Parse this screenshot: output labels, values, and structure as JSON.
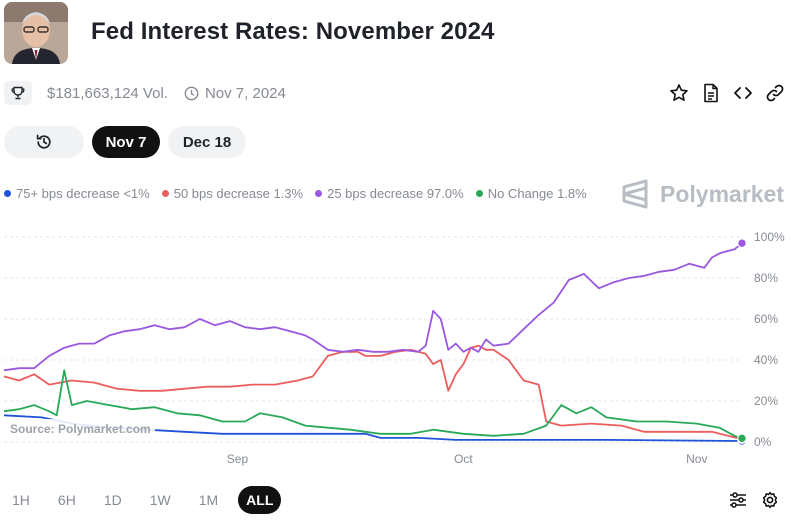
{
  "header": {
    "title": "Fed Interest Rates: November 2024",
    "avatar_icon": "portrait-avatar"
  },
  "meta": {
    "volume": "$181,663,124 Vol.",
    "date": "Nov 7, 2024"
  },
  "date_tabs": {
    "history_icon": "history-icon",
    "tabs": [
      "Nov 7",
      "Dec 18"
    ],
    "selected": "Nov 7"
  },
  "legend": [
    {
      "label": "75+ bps decrease <1%",
      "color": "#2053d9"
    },
    {
      "label": "50 bps decrease 1.3%",
      "color": "#ec5d5d"
    },
    {
      "label": "25 bps decrease 97.0%",
      "color": "#9a58e0"
    },
    {
      "label": "No Change 1.8%",
      "color": "#28a957"
    }
  ],
  "brand": "Polymarket",
  "source": "Source: Polymarket.com",
  "ranges": [
    "1H",
    "6H",
    "1D",
    "1W",
    "1M",
    "ALL"
  ],
  "selected_range": "ALL",
  "chart_data": {
    "type": "line",
    "title": "",
    "xlabel": "",
    "ylabel": "",
    "x_unit": "date (2024)",
    "x_ticks": [
      "Sep",
      "Oct",
      "Nov"
    ],
    "y_ticks": [
      "0%",
      "20%",
      "40%",
      "60%",
      "80%",
      "100%"
    ],
    "ylim": [
      0,
      100
    ],
    "xlim": [
      "2024-08-01",
      "2024-11-07"
    ],
    "grid": "horizontal dashed",
    "legend": "top-left",
    "series": [
      {
        "name": "75+ bps decrease",
        "color": "#2053d9",
        "points": [
          [
            "2024-08-01",
            13
          ],
          [
            "2024-08-06",
            12
          ],
          [
            "2024-08-10",
            9
          ],
          [
            "2024-08-15",
            7
          ],
          [
            "2024-08-20",
            6
          ],
          [
            "2024-08-25",
            5
          ],
          [
            "2024-08-30",
            4
          ],
          [
            "2024-09-05",
            4
          ],
          [
            "2024-09-10",
            4
          ],
          [
            "2024-09-16",
            4
          ],
          [
            "2024-09-18",
            4
          ],
          [
            "2024-09-20",
            2
          ],
          [
            "2024-09-25",
            2
          ],
          [
            "2024-09-30",
            1
          ],
          [
            "2024-10-05",
            1
          ],
          [
            "2024-10-10",
            1
          ],
          [
            "2024-10-20",
            1
          ],
          [
            "2024-11-07",
            0.5
          ]
        ]
      },
      {
        "name": "50 bps decrease",
        "color": "#ec5d5d",
        "points": [
          [
            "2024-08-01",
            32
          ],
          [
            "2024-08-03",
            30
          ],
          [
            "2024-08-05",
            33
          ],
          [
            "2024-08-07",
            28
          ],
          [
            "2024-08-10",
            30
          ],
          [
            "2024-08-13",
            29
          ],
          [
            "2024-08-16",
            26
          ],
          [
            "2024-08-19",
            25
          ],
          [
            "2024-08-22",
            25
          ],
          [
            "2024-08-25",
            26
          ],
          [
            "2024-08-28",
            27
          ],
          [
            "2024-08-31",
            27
          ],
          [
            "2024-09-03",
            28
          ],
          [
            "2024-09-06",
            28
          ],
          [
            "2024-09-09",
            30
          ],
          [
            "2024-09-11",
            32
          ],
          [
            "2024-09-13",
            42
          ],
          [
            "2024-09-15",
            44
          ],
          [
            "2024-09-17",
            44
          ],
          [
            "2024-09-18",
            42
          ],
          [
            "2024-09-20",
            42
          ],
          [
            "2024-09-22",
            44
          ],
          [
            "2024-09-24",
            45
          ],
          [
            "2024-09-26",
            43
          ],
          [
            "2024-09-27",
            38
          ],
          [
            "2024-09-28",
            40
          ],
          [
            "2024-09-29",
            25
          ],
          [
            "2024-09-30",
            33
          ],
          [
            "2024-10-01",
            38
          ],
          [
            "2024-10-02",
            46
          ],
          [
            "2024-10-03",
            47
          ],
          [
            "2024-10-04",
            45
          ],
          [
            "2024-10-05",
            45
          ],
          [
            "2024-10-07",
            40
          ],
          [
            "2024-10-09",
            30
          ],
          [
            "2024-10-11",
            28
          ],
          [
            "2024-10-12",
            10
          ],
          [
            "2024-10-14",
            8
          ],
          [
            "2024-10-18",
            9
          ],
          [
            "2024-10-22",
            8
          ],
          [
            "2024-10-25",
            5
          ],
          [
            "2024-10-30",
            5
          ],
          [
            "2024-11-03",
            5
          ],
          [
            "2024-11-07",
            1.3
          ]
        ]
      },
      {
        "name": "25 bps decrease",
        "color": "#9a58e0",
        "points": [
          [
            "2024-08-01",
            35
          ],
          [
            "2024-08-03",
            36
          ],
          [
            "2024-08-05",
            36
          ],
          [
            "2024-08-07",
            42
          ],
          [
            "2024-08-09",
            46
          ],
          [
            "2024-08-11",
            48
          ],
          [
            "2024-08-13",
            48
          ],
          [
            "2024-08-15",
            52
          ],
          [
            "2024-08-17",
            54
          ],
          [
            "2024-08-19",
            55
          ],
          [
            "2024-08-21",
            57
          ],
          [
            "2024-08-23",
            55
          ],
          [
            "2024-08-25",
            56
          ],
          [
            "2024-08-27",
            60
          ],
          [
            "2024-08-29",
            57
          ],
          [
            "2024-08-31",
            59
          ],
          [
            "2024-09-02",
            56
          ],
          [
            "2024-09-04",
            55
          ],
          [
            "2024-09-06",
            56
          ],
          [
            "2024-09-08",
            54
          ],
          [
            "2024-09-10",
            52
          ],
          [
            "2024-09-11",
            50
          ],
          [
            "2024-09-13",
            45
          ],
          [
            "2024-09-15",
            44
          ],
          [
            "2024-09-17",
            45
          ],
          [
            "2024-09-19",
            44
          ],
          [
            "2024-09-21",
            44
          ],
          [
            "2024-09-23",
            45
          ],
          [
            "2024-09-25",
            44
          ],
          [
            "2024-09-26",
            47
          ],
          [
            "2024-09-27",
            64
          ],
          [
            "2024-09-28",
            60
          ],
          [
            "2024-09-29",
            45
          ],
          [
            "2024-09-30",
            48
          ],
          [
            "2024-10-01",
            44
          ],
          [
            "2024-10-02",
            46
          ],
          [
            "2024-10-03",
            44
          ],
          [
            "2024-10-04",
            50
          ],
          [
            "2024-10-05",
            47
          ],
          [
            "2024-10-07",
            48
          ],
          [
            "2024-10-09",
            55
          ],
          [
            "2024-10-11",
            62
          ],
          [
            "2024-10-13",
            68
          ],
          [
            "2024-10-15",
            79
          ],
          [
            "2024-10-17",
            82
          ],
          [
            "2024-10-19",
            75
          ],
          [
            "2024-10-21",
            78
          ],
          [
            "2024-10-23",
            80
          ],
          [
            "2024-10-25",
            81
          ],
          [
            "2024-10-27",
            83
          ],
          [
            "2024-10-29",
            84
          ],
          [
            "2024-10-31",
            87
          ],
          [
            "2024-11-02",
            85
          ],
          [
            "2024-11-03",
            90
          ],
          [
            "2024-11-04",
            92
          ],
          [
            "2024-11-05",
            93
          ],
          [
            "2024-11-06",
            94
          ],
          [
            "2024-11-07",
            97
          ]
        ]
      },
      {
        "name": "No Change",
        "color": "#28a957",
        "points": [
          [
            "2024-08-01",
            15
          ],
          [
            "2024-08-03",
            16
          ],
          [
            "2024-08-05",
            18
          ],
          [
            "2024-08-07",
            15
          ],
          [
            "2024-08-08",
            13
          ],
          [
            "2024-08-09",
            35
          ],
          [
            "2024-08-10",
            18
          ],
          [
            "2024-08-12",
            20
          ],
          [
            "2024-08-15",
            18
          ],
          [
            "2024-08-18",
            16
          ],
          [
            "2024-08-21",
            17
          ],
          [
            "2024-08-24",
            14
          ],
          [
            "2024-08-27",
            13
          ],
          [
            "2024-08-30",
            10
          ],
          [
            "2024-09-02",
            10
          ],
          [
            "2024-09-04",
            14
          ],
          [
            "2024-09-07",
            12
          ],
          [
            "2024-09-10",
            8
          ],
          [
            "2024-09-13",
            7
          ],
          [
            "2024-09-16",
            6
          ],
          [
            "2024-09-18",
            5
          ],
          [
            "2024-09-20",
            4
          ],
          [
            "2024-09-24",
            4
          ],
          [
            "2024-09-27",
            6
          ],
          [
            "2024-10-01",
            4
          ],
          [
            "2024-10-05",
            3
          ],
          [
            "2024-10-09",
            4
          ],
          [
            "2024-10-12",
            8
          ],
          [
            "2024-10-14",
            18
          ],
          [
            "2024-10-16",
            14
          ],
          [
            "2024-10-18",
            17
          ],
          [
            "2024-10-20",
            12
          ],
          [
            "2024-10-24",
            10
          ],
          [
            "2024-10-28",
            10
          ],
          [
            "2024-11-01",
            9
          ],
          [
            "2024-11-04",
            7
          ],
          [
            "2024-11-06",
            3
          ],
          [
            "2024-11-07",
            1.8
          ]
        ]
      }
    ]
  }
}
